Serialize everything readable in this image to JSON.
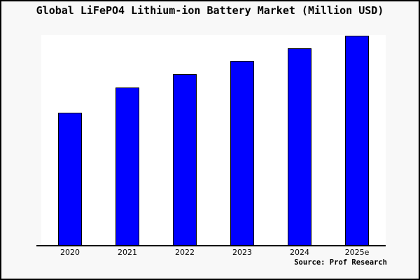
{
  "chart_data": {
    "type": "bar",
    "title": "Global LiFePO4 Lithium-ion Battery Market (Million USD)",
    "categories": [
      "2020",
      "2021",
      "2022",
      "2023",
      "2024",
      "2025e"
    ],
    "values": [
      63.1,
      75.1,
      81.4,
      87.7,
      93.7,
      99.7
    ],
    "values_note": "no y-axis or data labels shown; values estimated as percent of plot-area height",
    "xlabel": "",
    "ylabel": "",
    "ylim": [
      0,
      100
    ],
    "grid": false,
    "legend": false,
    "source_note": "Source: Prof Research",
    "bar_color": "#0000ff",
    "bar_border_color": "#000000"
  },
  "colors": {
    "page_bg": "#f8f8f8",
    "plot_bg": "#ffffff",
    "axis": "#000000",
    "frame_border": "#000000"
  }
}
